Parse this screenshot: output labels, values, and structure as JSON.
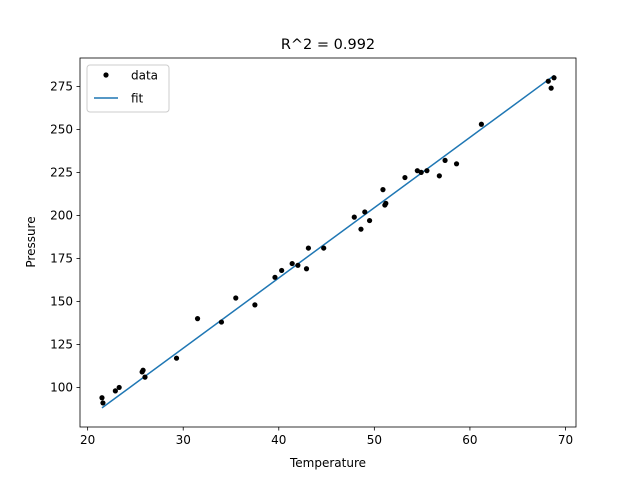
{
  "chart_data": {
    "type": "scatter",
    "title": "R^2 = 0.992",
    "xlabel": "Temperature",
    "ylabel": "Pressure",
    "xlim": [
      19.2,
      71.1
    ],
    "ylim": [
      77,
      291.5
    ],
    "xticks": [
      20,
      30,
      40,
      50,
      60,
      70
    ],
    "yticks": [
      100,
      125,
      150,
      175,
      200,
      225,
      250,
      275
    ],
    "grid": false,
    "legend_position": "top-left",
    "series": [
      {
        "name": "data",
        "type": "scatter",
        "color": "#000000",
        "points": [
          [
            21.5,
            94
          ],
          [
            21.6,
            91
          ],
          [
            22.9,
            98
          ],
          [
            23.3,
            100
          ],
          [
            25.7,
            109
          ],
          [
            25.8,
            110
          ],
          [
            26.0,
            106
          ],
          [
            29.3,
            117
          ],
          [
            31.5,
            140
          ],
          [
            34.0,
            138
          ],
          [
            35.5,
            152
          ],
          [
            37.5,
            148
          ],
          [
            39.6,
            164
          ],
          [
            40.3,
            168
          ],
          [
            41.4,
            172
          ],
          [
            42.0,
            171
          ],
          [
            42.9,
            169
          ],
          [
            43.1,
            181
          ],
          [
            44.7,
            181
          ],
          [
            47.9,
            199
          ],
          [
            48.6,
            192
          ],
          [
            49.0,
            202
          ],
          [
            49.5,
            197
          ],
          [
            50.9,
            215
          ],
          [
            51.1,
            206
          ],
          [
            51.2,
            207
          ],
          [
            53.2,
            222
          ],
          [
            54.5,
            226
          ],
          [
            54.9,
            225
          ],
          [
            55.5,
            226
          ],
          [
            56.8,
            223
          ],
          [
            57.4,
            232
          ],
          [
            58.6,
            230
          ],
          [
            61.2,
            253
          ],
          [
            68.2,
            278
          ],
          [
            68.5,
            274
          ],
          [
            68.8,
            280
          ]
        ]
      },
      {
        "name": "fit",
        "type": "line",
        "color": "#1f77b4",
        "x": [
          21.5,
          68.8
        ],
        "y": [
          88.1,
          281.3
        ]
      }
    ]
  }
}
